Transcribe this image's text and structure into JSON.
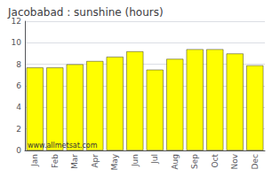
{
  "chart_data": {
    "type": "bar",
    "title": "Jacobabad : sunshine (hours)",
    "categories": [
      "Jan",
      "Feb",
      "Mar",
      "Apr",
      "May",
      "Jun",
      "Jul",
      "Aug",
      "Sep",
      "Oct",
      "Nov",
      "Dec"
    ],
    "values": [
      7.7,
      7.7,
      8.0,
      8.3,
      8.7,
      9.2,
      7.5,
      8.5,
      9.4,
      9.4,
      9.0,
      7.9
    ],
    "color": "#FFFF00",
    "ylim": [
      0,
      12
    ],
    "yticks": [
      0,
      2,
      4,
      6,
      8,
      10,
      12
    ],
    "grid": true,
    "annotation": "www.allmetsat.com"
  }
}
